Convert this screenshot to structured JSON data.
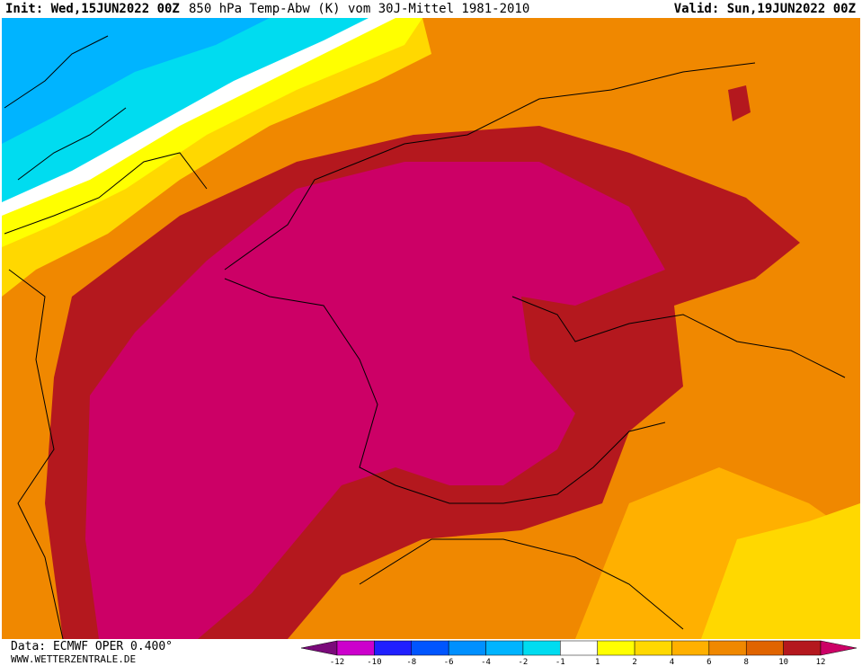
{
  "header": {
    "init": "Init: Wed,15JUN2022 00Z",
    "title": "850 hPa Temp-Abw (K) vom 30J-Mittel 1981-2010",
    "valid": "Valid: Sun,19JUN2022 00Z"
  },
  "footer": {
    "source": "Data: ECMWF OPER 0.400°",
    "site": "WWW.WETTERZENTRALE.DE"
  },
  "legend": {
    "labels": [
      "-12",
      "-10",
      "-8",
      "-6",
      "-4",
      "-2",
      "-1",
      "1",
      "2",
      "4",
      "6",
      "8",
      "10",
      "12"
    ],
    "colors": [
      "#7a0a7a",
      "#cc00cc",
      "#2020ff",
      "#0055ff",
      "#0090ff",
      "#00b4ff",
      "#00dcf0",
      "#ffffff",
      "#ffff00",
      "#ffd800",
      "#ffb000",
      "#f08800",
      "#e06400",
      "#b4181e",
      "#cc0066"
    ]
  }
}
